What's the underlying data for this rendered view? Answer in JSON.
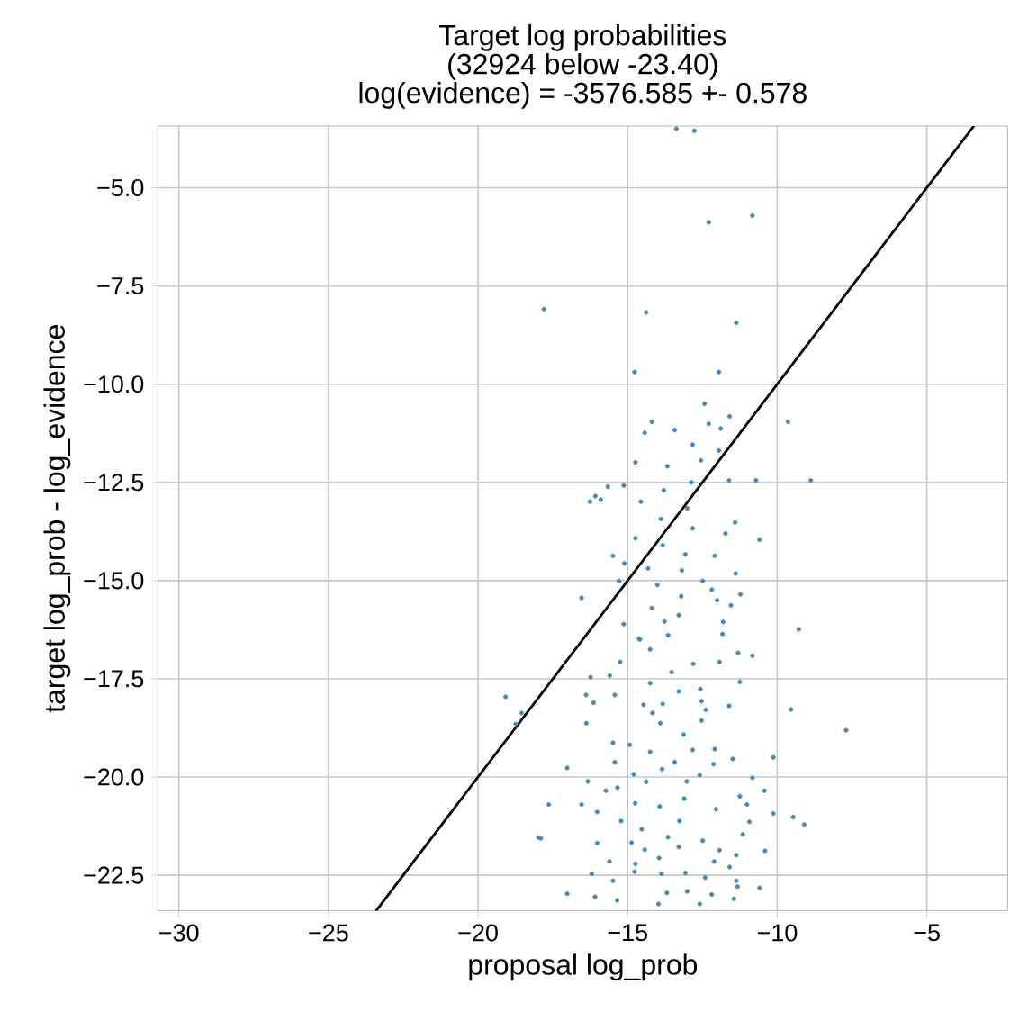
{
  "chart_data": {
    "type": "scatter",
    "title": "Target log probabilities",
    "subtitle": "(32924 below -23.40)",
    "annotations": [
      "log(evidence) = -3576.585 +- 0.578"
    ],
    "xlabel": "proposal log_prob",
    "ylabel": "target log_prob - log_evidence",
    "xlim": [
      -30.7,
      -2.3
    ],
    "ylim": [
      -23.4,
      -3.43
    ],
    "xticks": [
      {
        "value": -30,
        "label": "−30"
      },
      {
        "value": -25,
        "label": "−25"
      },
      {
        "value": -20,
        "label": "−20"
      },
      {
        "value": -15,
        "label": "−15"
      },
      {
        "value": -10,
        "label": "−10"
      },
      {
        "value": -5,
        "label": "−5"
      }
    ],
    "yticks": [
      {
        "value": -22.5,
        "label": "−22.5"
      },
      {
        "value": -20,
        "label": "−20.0"
      },
      {
        "value": -17.5,
        "label": "−17.5"
      },
      {
        "value": -15,
        "label": "−15.0"
      },
      {
        "value": -12.5,
        "label": "−12.5"
      },
      {
        "value": -10,
        "label": "−10.0"
      },
      {
        "value": -7.5,
        "label": "−7.5"
      },
      {
        "value": -5,
        "label": "−5.0"
      }
    ],
    "grid": true,
    "marker": "circle",
    "series": [
      {
        "color": "#3f8ac6",
        "x": [
          -13.37,
          -12.77,
          -12.29,
          -10.83,
          -17.8,
          -14.38,
          -11.37,
          -14.77,
          -11.95,
          -12.43,
          -14.19,
          -14.43,
          -13.43,
          -12.29,
          -11.59,
          -11.89,
          -9.64,
          -12.83,
          -14.74,
          -13.67,
          -12.55,
          -11.95,
          -11.61,
          -10.71,
          -8.88,
          -15.13,
          -15.66,
          -16.08,
          -16.26,
          -15.9,
          -14.56,
          -13.79,
          -12.87,
          -13.01,
          -13.89,
          -12.83,
          -11.41,
          -11.73,
          -10.59,
          -14.74,
          -13.83,
          -13.07,
          -12.09,
          -15.49,
          -15.11,
          -14.32,
          -13.19,
          -11.39,
          -15.29,
          -14.01,
          -12.49,
          -16.54,
          -12.19,
          -13.21,
          -11.23,
          -12.01,
          -14.19,
          -11.55,
          -13.29,
          -13.77,
          -11.81,
          -15.13,
          -9.28,
          -13.65,
          -14.59,
          -14.62,
          -14.25,
          -11.83,
          -15.25,
          -16.24,
          -15.6,
          -13.53,
          -12.81,
          -11.93,
          -11.31,
          -10.83,
          -16.39,
          -15.43,
          -14.25,
          -13.29,
          -12.57,
          -11.25,
          -16.14,
          -14.47,
          -13.83,
          -12.53,
          -11.61,
          -14.17,
          -12.39,
          -16.38,
          -13.91,
          -12.53,
          -9.54,
          -7.7,
          -13.13,
          -15.49,
          -14.93,
          -14.25,
          -12.83,
          -12.09,
          -11.49,
          -10.13,
          -15.43,
          -17.02,
          -13.85,
          -13.43,
          -12.13,
          -16.33,
          -14.8,
          -14.38,
          -12.59,
          -10.83,
          -15.73,
          -17.64,
          -16.54,
          -15.34,
          -13.03,
          -11.25,
          -10.43,
          -16.02,
          -14.75,
          -13.93,
          -13.11,
          -12.05,
          -11.01,
          -10.13,
          -9.47,
          -9.1,
          -17.9,
          -15.22,
          -14.53,
          -13.65,
          -13.27,
          -12.49,
          -10.93,
          -11.15,
          -16.02,
          -14.87,
          -14.43,
          -13.29,
          -11.93,
          -10.41,
          -15.61,
          -14.74,
          -13.95,
          -12.11,
          -11.37,
          -11.59,
          -16.2,
          -15.49,
          -14.77,
          -13.87,
          -13.07,
          -12.41,
          -11.37,
          -10.59,
          -17.02,
          -16.09,
          -13.69,
          -13.01,
          -12.19,
          -11.33,
          -19.08,
          -18.54,
          -18.74,
          -17.98,
          -13.97,
          -12.59,
          -15.35,
          -11.45
        ],
        "values": [
          -3.5,
          -3.55,
          -5.88,
          -5.71,
          -8.09,
          -8.17,
          -8.44,
          -9.69,
          -9.69,
          -10.5,
          -10.96,
          -11.24,
          -11.17,
          -11.01,
          -10.82,
          -11.13,
          -10.96,
          -11.54,
          -11.99,
          -12.09,
          -11.94,
          -11.69,
          -12.45,
          -12.45,
          -12.45,
          -12.58,
          -12.61,
          -12.85,
          -12.99,
          -12.94,
          -12.99,
          -12.7,
          -12.5,
          -13.16,
          -13.43,
          -13.67,
          -13.52,
          -13.8,
          -13.96,
          -13.92,
          -14.1,
          -14.33,
          -14.37,
          -14.37,
          -14.56,
          -14.69,
          -14.74,
          -14.82,
          -15.01,
          -15.11,
          -15.01,
          -15.44,
          -15.23,
          -15.4,
          -15.35,
          -15.5,
          -15.7,
          -15.63,
          -15.88,
          -16.04,
          -16.05,
          -16.11,
          -16.24,
          -16.39,
          -16.5,
          -16.48,
          -16.75,
          -16.36,
          -17.07,
          -17.46,
          -17.42,
          -17.33,
          -17.12,
          -17.07,
          -16.84,
          -16.91,
          -17.91,
          -17.91,
          -17.61,
          -17.82,
          -17.76,
          -17.58,
          -18.11,
          -18.16,
          -18.14,
          -18.07,
          -18.19,
          -18.37,
          -18.29,
          -18.63,
          -18.63,
          -18.56,
          -18.28,
          -18.81,
          -18.92,
          -19.13,
          -19.18,
          -19.36,
          -19.31,
          -19.29,
          -19.54,
          -19.5,
          -19.62,
          -19.77,
          -19.8,
          -19.62,
          -19.67,
          -20.11,
          -19.93,
          -20.12,
          -19.95,
          -20.02,
          -20.35,
          -20.7,
          -20.7,
          -20.27,
          -20.11,
          -20.49,
          -20.35,
          -20.89,
          -20.67,
          -20.75,
          -20.55,
          -20.82,
          -20.7,
          -20.93,
          -21.02,
          -21.21,
          -21.56,
          -21.12,
          -21.33,
          -21.53,
          -21.12,
          -21.62,
          -21.14,
          -21.46,
          -21.68,
          -21.67,
          -21.85,
          -21.78,
          -21.86,
          -21.88,
          -22.15,
          -22.21,
          -22.06,
          -22.15,
          -21.99,
          -22.29,
          -22.46,
          -22.64,
          -22.41,
          -22.46,
          -22.44,
          -22.56,
          -22.64,
          -22.82,
          -22.97,
          -23.05,
          -22.95,
          -22.91,
          -22.99,
          -22.79,
          -17.96,
          -18.37,
          -18.65,
          -21.54,
          -23.23,
          -23.23,
          -23.14,
          -23.1
        ]
      },
      {
        "type": "line",
        "color": "#000000",
        "marker": "none",
        "x": [
          -23.4,
          -3.43
        ],
        "values": [
          -23.4,
          -3.43
        ]
      }
    ]
  }
}
